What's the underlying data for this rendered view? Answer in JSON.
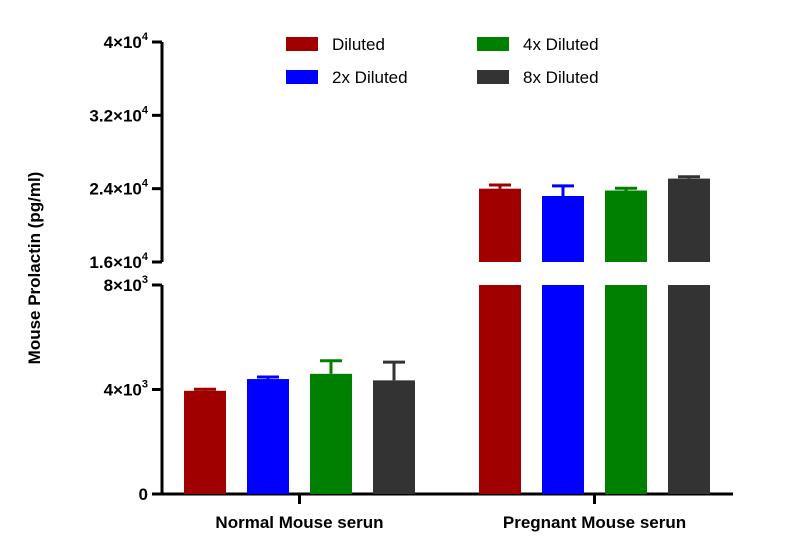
{
  "chart_data": {
    "type": "bar",
    "ylabel": "Mouse Prolactin (pg/ml)",
    "xlabel": "",
    "title": "",
    "categories": [
      "Normal Mouse serun",
      "Pregnant Mouse serun"
    ],
    "series": [
      {
        "name": "Diluted",
        "color": "#a00000",
        "values": [
          3950,
          24000
        ],
        "errors": [
          60,
          400
        ]
      },
      {
        "name": "2x Diluted",
        "color": "#0000ff",
        "values": [
          4400,
          23200
        ],
        "errors": [
          80,
          1100
        ]
      },
      {
        "name": "4x Diluted",
        "color": "#008000",
        "values": [
          4600,
          23800
        ],
        "errors": [
          500,
          250
        ]
      },
      {
        "name": "8x Diluted",
        "color": "#333333",
        "values": [
          4350,
          25100
        ],
        "errors": [
          700,
          200
        ]
      }
    ],
    "y_axis": {
      "broken": true,
      "lower_segment": {
        "range": [
          0,
          8000
        ],
        "ticks": [
          {
            "base": "0",
            "exp": ""
          },
          {
            "base": "4×10",
            "exp": "3"
          },
          {
            "base": "8×10",
            "exp": "3"
          }
        ]
      },
      "upper_segment": {
        "range": [
          16000,
          40000
        ],
        "ticks": [
          {
            "base": "1.6×10",
            "exp": "4"
          },
          {
            "base": "2.4×10",
            "exp": "4"
          },
          {
            "base": "3.2×10",
            "exp": "4"
          },
          {
            "base": "4×10",
            "exp": "4"
          }
        ]
      }
    },
    "legend": {
      "position": "top",
      "columns": 2
    },
    "grid": false
  }
}
